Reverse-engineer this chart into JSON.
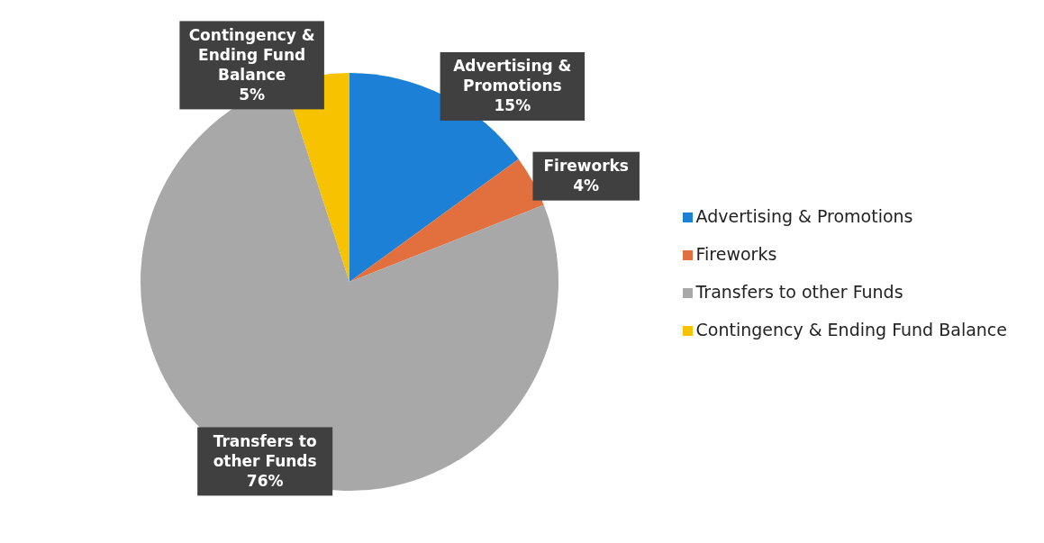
{
  "chart_data": {
    "type": "pie",
    "categories": [
      "Advertising & Promotions",
      "Fireworks",
      "Transfers to other Funds",
      "Contingency & Ending Fund Balance"
    ],
    "values": [
      15,
      4,
      76,
      5
    ],
    "value_labels": [
      "15%",
      "4%",
      "76%",
      "5%"
    ],
    "colors": [
      "#1b80d6",
      "#e2703e",
      "#a8a8a8",
      "#f7c200"
    ],
    "legend": "right"
  }
}
